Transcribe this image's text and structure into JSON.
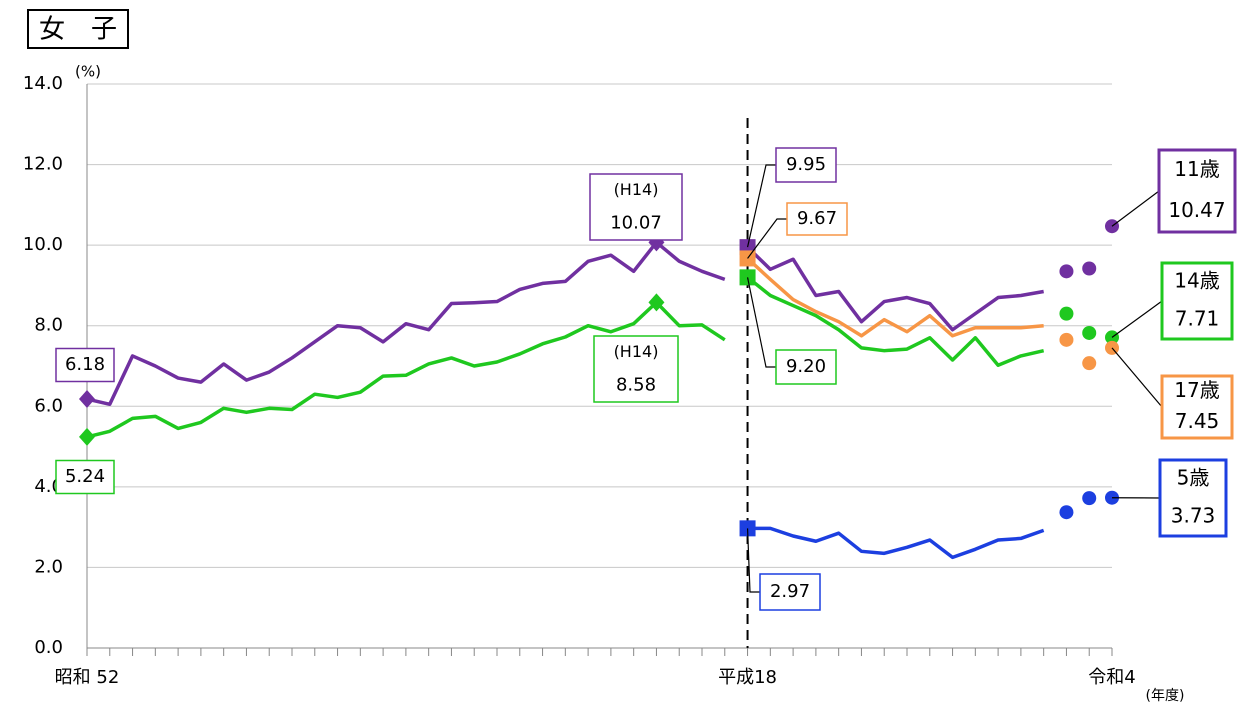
{
  "chart_data": {
    "type": "line",
    "title": "女　子",
    "y_label": "(%)",
    "x_label": "(年度)",
    "ylim": [
      0,
      14
    ],
    "yticks": [
      {
        "value": 0,
        "label": "0.0"
      },
      {
        "value": 2,
        "label": "2.0"
      },
      {
        "value": 4,
        "label": "4.0"
      },
      {
        "value": 6,
        "label": "6.0"
      },
      {
        "value": 8,
        "label": "8.0"
      },
      {
        "value": 10,
        "label": "10.0"
      },
      {
        "value": 12,
        "label": "12.0"
      },
      {
        "value": 14,
        "label": "14.0"
      }
    ],
    "grid": true,
    "categories": [
      "昭和 52",
      null,
      null,
      null,
      null,
      null,
      null,
      null,
      null,
      null,
      null,
      null,
      null,
      null,
      null,
      null,
      null,
      null,
      null,
      null,
      null,
      null,
      null,
      null,
      null,
      null,
      null,
      null,
      null,
      "平成18",
      null,
      null,
      null,
      null,
      null,
      null,
      null,
      null,
      null,
      null,
      null,
      null,
      null,
      null,
      null,
      "令和4"
    ],
    "annotations": [
      "(H14)",
      "(H14)"
    ],
    "series": [
      {
        "name": "11歳",
        "color": "#7030a0",
        "values": [
          6.18,
          6.05,
          7.25,
          7.0,
          6.7,
          6.6,
          7.05,
          6.65,
          6.85,
          7.2,
          7.6,
          8.0,
          7.95,
          7.6,
          8.05,
          7.9,
          8.55,
          8.57,
          8.6,
          8.9,
          9.05,
          9.1,
          9.6,
          9.75,
          9.35,
          10.07,
          9.6,
          9.35,
          9.15,
          9.95,
          9.4,
          9.65,
          8.75,
          8.85,
          8.1,
          8.6,
          8.7,
          8.55,
          7.9,
          8.3,
          8.7,
          8.75,
          8.85,
          9.35,
          9.42,
          10.47
        ],
        "value_labels": [
          "6.18",
          null,
          null,
          null,
          null,
          null,
          null,
          null,
          null,
          null,
          null,
          null,
          null,
          null,
          null,
          null,
          null,
          null,
          null,
          null,
          null,
          null,
          null,
          null,
          null,
          "10.07",
          null,
          null,
          null,
          "9.95",
          null,
          null,
          null,
          null,
          null,
          null,
          null,
          null,
          null,
          null,
          null,
          null,
          null,
          null,
          null,
          "10.47"
        ]
      },
      {
        "name": "14歳",
        "color": "#1fc81f",
        "values": [
          5.24,
          5.38,
          5.7,
          5.75,
          5.45,
          5.6,
          5.95,
          5.85,
          5.95,
          5.92,
          6.3,
          6.22,
          6.35,
          6.75,
          6.77,
          7.05,
          7.2,
          7.0,
          7.1,
          7.3,
          7.55,
          7.72,
          8.0,
          7.85,
          8.05,
          8.58,
          8.0,
          8.02,
          7.65,
          9.2,
          8.75,
          8.5,
          8.25,
          7.9,
          7.45,
          7.38,
          7.42,
          7.7,
          7.15,
          7.7,
          7.02,
          7.25,
          7.38,
          8.3,
          7.82,
          7.71
        ],
        "value_labels": [
          "5.24",
          null,
          null,
          null,
          null,
          null,
          null,
          null,
          null,
          null,
          null,
          null,
          null,
          null,
          null,
          null,
          null,
          null,
          null,
          null,
          null,
          null,
          null,
          null,
          null,
          "8.58",
          null,
          null,
          null,
          "9.20",
          null,
          null,
          null,
          null,
          null,
          null,
          null,
          null,
          null,
          null,
          null,
          null,
          null,
          null,
          null,
          "7.71"
        ]
      },
      {
        "name": "17歳",
        "color": "#f79646",
        "values": [
          null,
          null,
          null,
          null,
          null,
          null,
          null,
          null,
          null,
          null,
          null,
          null,
          null,
          null,
          null,
          null,
          null,
          null,
          null,
          null,
          null,
          null,
          null,
          null,
          null,
          null,
          null,
          null,
          null,
          9.67,
          9.15,
          8.65,
          8.35,
          8.1,
          7.75,
          8.15,
          7.85,
          8.25,
          7.75,
          7.95,
          7.95,
          7.95,
          8.0,
          7.65,
          7.07,
          7.45
        ],
        "value_labels": [
          null,
          null,
          null,
          null,
          null,
          null,
          null,
          null,
          null,
          null,
          null,
          null,
          null,
          null,
          null,
          null,
          null,
          null,
          null,
          null,
          null,
          null,
          null,
          null,
          null,
          null,
          null,
          null,
          null,
          "9.67",
          null,
          null,
          null,
          null,
          null,
          null,
          null,
          null,
          null,
          null,
          null,
          null,
          null,
          null,
          null,
          "7.45"
        ]
      },
      {
        "name": "5歳",
        "color": "#1c3fe0",
        "values": [
          null,
          null,
          null,
          null,
          null,
          null,
          null,
          null,
          null,
          null,
          null,
          null,
          null,
          null,
          null,
          null,
          null,
          null,
          null,
          null,
          null,
          null,
          null,
          null,
          null,
          null,
          null,
          null,
          null,
          2.97,
          2.97,
          2.78,
          2.65,
          2.85,
          2.4,
          2.35,
          2.5,
          2.68,
          2.25,
          2.45,
          2.68,
          2.72,
          2.92,
          3.37,
          3.72,
          3.73
        ],
        "value_labels": [
          null,
          null,
          null,
          null,
          null,
          null,
          null,
          null,
          null,
          null,
          null,
          null,
          null,
          null,
          null,
          null,
          null,
          null,
          null,
          null,
          null,
          null,
          null,
          null,
          null,
          null,
          null,
          null,
          null,
          "2.97",
          null,
          null,
          null,
          null,
          null,
          null,
          null,
          null,
          null,
          null,
          null,
          null,
          null,
          null,
          null,
          "3.73"
        ]
      }
    ]
  }
}
